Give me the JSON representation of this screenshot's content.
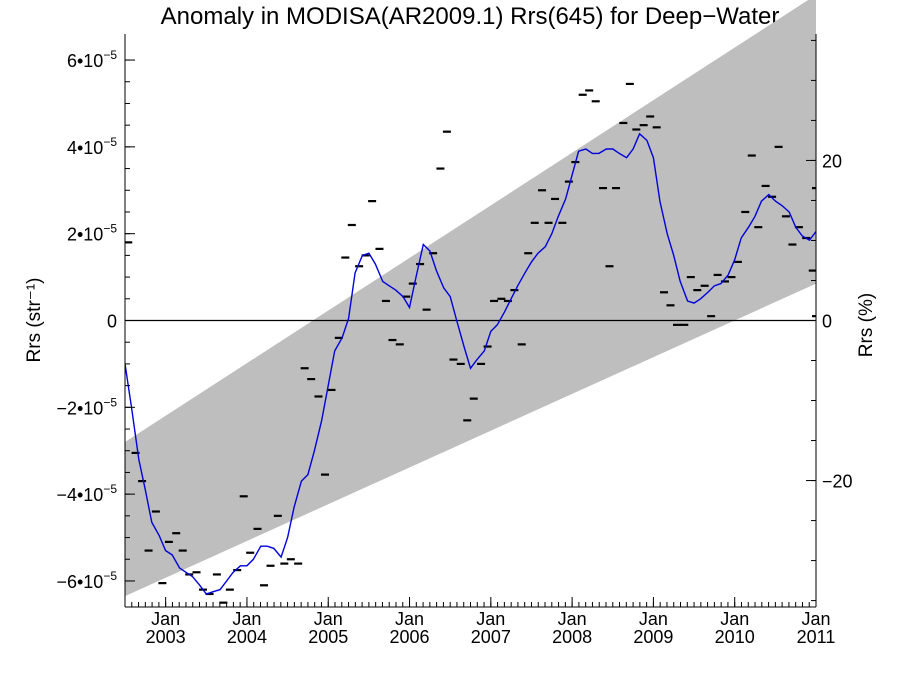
{
  "chart_data": {
    "type": "scatter",
    "title": "Anomaly in MODISA(AR2009.1) Rrs(645) for Deep−Water",
    "ylabel_left": "Rrs (str⁻¹)",
    "ylabel_right": "Rrs (%)",
    "xlabel": "",
    "x_unit": "decimal year",
    "xlim": [
      2002.5,
      2011.0
    ],
    "ylim": [
      -6.6e-05,
      6.6e-05
    ],
    "ylim_right_percent": [
      -35.8,
      35.8
    ],
    "grid": false,
    "x_ticks": [
      {
        "x": 2003.0,
        "month": "Jan",
        "year": "2003"
      },
      {
        "x": 2004.0,
        "month": "Jan",
        "year": "2004"
      },
      {
        "x": 2005.0,
        "month": "Jan",
        "year": "2005"
      },
      {
        "x": 2006.0,
        "month": "Jan",
        "year": "2006"
      },
      {
        "x": 2007.0,
        "month": "Jan",
        "year": "2007"
      },
      {
        "x": 2008.0,
        "month": "Jan",
        "year": "2008"
      },
      {
        "x": 2009.0,
        "month": "Jan",
        "year": "2009"
      },
      {
        "x": 2010.0,
        "month": "Jan",
        "year": "2010"
      },
      {
        "x": 2011.0,
        "month": "Jan",
        "year": "2011"
      }
    ],
    "y_ticks_left": [
      {
        "v": 6e-05,
        "mant": "6•10",
        "exp": "−5"
      },
      {
        "v": 4e-05,
        "mant": "4•10",
        "exp": "−5"
      },
      {
        "v": 2e-05,
        "mant": "2•10",
        "exp": "−5"
      },
      {
        "v": 0,
        "mant": "0",
        "exp": ""
      },
      {
        "v": -2e-05,
        "mant": "−2•10",
        "exp": "−5"
      },
      {
        "v": -4e-05,
        "mant": "−4•10",
        "exp": "−5"
      },
      {
        "v": -6e-05,
        "mant": "−6•10",
        "exp": "−5"
      }
    ],
    "y_ticks_right": [
      {
        "v": 20,
        "label": "20"
      },
      {
        "v": 0,
        "label": "0"
      },
      {
        "v": -20,
        "label": "−20"
      }
    ],
    "band": {
      "color": "#bebebe",
      "upper": [
        [
          2002.5,
          -2.8e-05
        ],
        [
          2011.0,
          7.5e-05
        ]
      ],
      "lower": [
        [
          2002.5,
          -6.35e-05
        ],
        [
          2011.0,
          8.5e-06
        ]
      ]
    },
    "zero_line": 0,
    "series": [
      {
        "kind": "monthly_anomaly_markers",
        "color": "#000000",
        "points": [
          [
            2002.54,
            1.8e-05
          ],
          [
            2002.63,
            -3.05e-05
          ],
          [
            2002.71,
            -3.7e-05
          ],
          [
            2002.79,
            -5.3e-05
          ],
          [
            2002.88,
            -4.4e-05
          ],
          [
            2002.96,
            -6.05e-05
          ],
          [
            2003.04,
            -5.1e-05
          ],
          [
            2003.13,
            -4.9e-05
          ],
          [
            2003.21,
            -5.3e-05
          ],
          [
            2003.29,
            -5.85e-05
          ],
          [
            2003.38,
            -5.8e-05
          ],
          [
            2003.46,
            -6.2e-05
          ],
          [
            2003.54,
            -6.3e-05
          ],
          [
            2003.63,
            -5.85e-05
          ],
          [
            2003.71,
            -6.5e-05
          ],
          [
            2003.79,
            -6.2e-05
          ],
          [
            2003.88,
            -5.75e-05
          ],
          [
            2003.96,
            -4.05e-05
          ],
          [
            2004.04,
            -5.35e-05
          ],
          [
            2004.13,
            -4.8e-05
          ],
          [
            2004.21,
            -6.1e-05
          ],
          [
            2004.29,
            -5.65e-05
          ],
          [
            2004.38,
            -4.5e-05
          ],
          [
            2004.46,
            -5.6e-05
          ],
          [
            2004.54,
            -5.5e-05
          ],
          [
            2004.63,
            -5.6e-05
          ],
          [
            2004.71,
            -1.1e-05
          ],
          [
            2004.79,
            -1.35e-05
          ],
          [
            2004.88,
            -1.75e-05
          ],
          [
            2004.96,
            -3.55e-05
          ],
          [
            2005.04,
            -1.6e-05
          ],
          [
            2005.13,
            -4e-06
          ],
          [
            2005.21,
            1.45e-05
          ],
          [
            2005.29,
            2.2e-05
          ],
          [
            2005.38,
            1.25e-05
          ],
          [
            2005.46,
            1.5e-05
          ],
          [
            2005.54,
            2.75e-05
          ],
          [
            2005.63,
            1.65e-05
          ],
          [
            2005.71,
            4.5e-06
          ],
          [
            2005.79,
            -4.5e-06
          ],
          [
            2005.88,
            -5.5e-06
          ],
          [
            2005.96,
            5.5e-06
          ],
          [
            2006.04,
            8.5e-06
          ],
          [
            2006.13,
            1.3e-05
          ],
          [
            2006.21,
            2.5e-06
          ],
          [
            2006.29,
            1.55e-05
          ],
          [
            2006.38,
            3.5e-05
          ],
          [
            2006.46,
            4.35e-05
          ],
          [
            2006.54,
            -9e-06
          ],
          [
            2006.63,
            -1e-05
          ],
          [
            2006.71,
            -2.3e-05
          ],
          [
            2006.79,
            -1.8e-05
          ],
          [
            2006.88,
            -1e-05
          ],
          [
            2006.96,
            -6e-06
          ],
          [
            2007.04,
            4.5e-06
          ],
          [
            2007.13,
            5e-06
          ],
          [
            2007.21,
            4.5e-06
          ],
          [
            2007.29,
            7e-06
          ],
          [
            2007.38,
            -5.5e-06
          ],
          [
            2007.46,
            1.55e-05
          ],
          [
            2007.54,
            2.25e-05
          ],
          [
            2007.63,
            3e-05
          ],
          [
            2007.71,
            2.25e-05
          ],
          [
            2007.79,
            2.8e-05
          ],
          [
            2007.88,
            2.25e-05
          ],
          [
            2007.96,
            3.2e-05
          ],
          [
            2008.04,
            3.65e-05
          ],
          [
            2008.13,
            5.2e-05
          ],
          [
            2008.21,
            5.3e-05
          ],
          [
            2008.29,
            5.05e-05
          ],
          [
            2008.38,
            3.05e-05
          ],
          [
            2008.46,
            1.25e-05
          ],
          [
            2008.54,
            3.05e-05
          ],
          [
            2008.63,
            4.55e-05
          ],
          [
            2008.71,
            5.45e-05
          ],
          [
            2008.79,
            4.4e-05
          ],
          [
            2008.88,
            4.5e-05
          ],
          [
            2008.96,
            4.7e-05
          ],
          [
            2009.04,
            4.45e-05
          ],
          [
            2009.13,
            6.5e-06
          ],
          [
            2009.21,
            3.5e-06
          ],
          [
            2009.29,
            -1e-06
          ],
          [
            2009.38,
            -1e-06
          ],
          [
            2009.46,
            1e-05
          ],
          [
            2009.54,
            7e-06
          ],
          [
            2009.63,
            8e-06
          ],
          [
            2009.71,
            1e-06
          ],
          [
            2009.79,
            1.05e-05
          ],
          [
            2009.88,
            9e-06
          ],
          [
            2009.96,
            1e-05
          ],
          [
            2010.04,
            1.35e-05
          ],
          [
            2010.13,
            2.5e-05
          ],
          [
            2010.21,
            3.8e-05
          ],
          [
            2010.29,
            2.15e-05
          ],
          [
            2010.38,
            3.1e-05
          ],
          [
            2010.46,
            2.85e-05
          ],
          [
            2010.54,
            4e-05
          ],
          [
            2010.63,
            2.4e-05
          ],
          [
            2010.71,
            1.75e-05
          ],
          [
            2010.79,
            2.15e-05
          ],
          [
            2010.88,
            1.9e-05
          ],
          [
            2010.96,
            1.15e-05
          ],
          [
            2011.0,
            1e-06
          ],
          [
            2011.0,
            3.05e-05
          ]
        ]
      },
      {
        "kind": "running_mean",
        "color": "#0000dd",
        "points": [
          [
            2002.5,
            -1e-05
          ],
          [
            2002.58,
            -2e-05
          ],
          [
            2002.67,
            -3.2e-05
          ],
          [
            2002.75,
            -3.9e-05
          ],
          [
            2002.83,
            -4.65e-05
          ],
          [
            2002.92,
            -4.95e-05
          ],
          [
            2003.0,
            -5.3e-05
          ],
          [
            2003.08,
            -5.4e-05
          ],
          [
            2003.17,
            -5.7e-05
          ],
          [
            2003.25,
            -5.8e-05
          ],
          [
            2003.33,
            -5.9e-05
          ],
          [
            2003.42,
            -6.1e-05
          ],
          [
            2003.5,
            -6.3e-05
          ],
          [
            2003.58,
            -6.25e-05
          ],
          [
            2003.67,
            -6.2e-05
          ],
          [
            2003.75,
            -6e-05
          ],
          [
            2003.83,
            -5.8e-05
          ],
          [
            2003.92,
            -5.65e-05
          ],
          [
            2004.0,
            -5.65e-05
          ],
          [
            2004.08,
            -5.5e-05
          ],
          [
            2004.17,
            -5.2e-05
          ],
          [
            2004.25,
            -5.2e-05
          ],
          [
            2004.33,
            -5.25e-05
          ],
          [
            2004.42,
            -5.45e-05
          ],
          [
            2004.5,
            -5e-05
          ],
          [
            2004.58,
            -4.3e-05
          ],
          [
            2004.67,
            -3.7e-05
          ],
          [
            2004.75,
            -3.55e-05
          ],
          [
            2004.83,
            -3e-05
          ],
          [
            2004.92,
            -2.3e-05
          ],
          [
            2005.0,
            -1.5e-05
          ],
          [
            2005.08,
            -7e-06
          ],
          [
            2005.17,
            -4e-06
          ],
          [
            2005.25,
            5e-07
          ],
          [
            2005.33,
            1.1e-05
          ],
          [
            2005.42,
            1.5e-05
          ],
          [
            2005.5,
            1.55e-05
          ],
          [
            2005.58,
            1.3e-05
          ],
          [
            2005.67,
            9e-06
          ],
          [
            2005.75,
            8e-06
          ],
          [
            2005.83,
            7e-06
          ],
          [
            2005.92,
            5.5e-06
          ],
          [
            2006.0,
            3e-06
          ],
          [
            2006.08,
            1e-05
          ],
          [
            2006.17,
            1.75e-05
          ],
          [
            2006.25,
            1.6e-05
          ],
          [
            2006.33,
            1.15e-05
          ],
          [
            2006.42,
            7.5e-06
          ],
          [
            2006.5,
            5.5e-06
          ],
          [
            2006.58,
            0.0
          ],
          [
            2006.67,
            -6e-06
          ],
          [
            2006.75,
            -1.1e-05
          ],
          [
            2006.83,
            -9e-06
          ],
          [
            2006.92,
            -7e-06
          ],
          [
            2007.0,
            -2.5e-06
          ],
          [
            2007.08,
            -1e-06
          ],
          [
            2007.17,
            2e-06
          ],
          [
            2007.25,
            5e-06
          ],
          [
            2007.33,
            8e-06
          ],
          [
            2007.42,
            1.1e-05
          ],
          [
            2007.5,
            1.35e-05
          ],
          [
            2007.58,
            1.55e-05
          ],
          [
            2007.67,
            1.7e-05
          ],
          [
            2007.75,
            2e-05
          ],
          [
            2007.83,
            2.4e-05
          ],
          [
            2007.92,
            2.8e-05
          ],
          [
            2008.0,
            3.35e-05
          ],
          [
            2008.08,
            3.9e-05
          ],
          [
            2008.17,
            3.95e-05
          ],
          [
            2008.25,
            3.85e-05
          ],
          [
            2008.33,
            3.85e-05
          ],
          [
            2008.42,
            3.95e-05
          ],
          [
            2008.5,
            3.95e-05
          ],
          [
            2008.58,
            3.85e-05
          ],
          [
            2008.67,
            3.75e-05
          ],
          [
            2008.75,
            3.95e-05
          ],
          [
            2008.83,
            4.3e-05
          ],
          [
            2008.92,
            4.15e-05
          ],
          [
            2009.0,
            3.75e-05
          ],
          [
            2009.08,
            2.75e-05
          ],
          [
            2009.17,
            2e-05
          ],
          [
            2009.25,
            1.5e-05
          ],
          [
            2009.33,
            9e-06
          ],
          [
            2009.42,
            4.5e-06
          ],
          [
            2009.5,
            4e-06
          ],
          [
            2009.58,
            5e-06
          ],
          [
            2009.67,
            6.5e-06
          ],
          [
            2009.75,
            8e-06
          ],
          [
            2009.83,
            8.5e-06
          ],
          [
            2009.92,
            1.05e-05
          ],
          [
            2010.0,
            1.4e-05
          ],
          [
            2010.08,
            1.9e-05
          ],
          [
            2010.17,
            2.15e-05
          ],
          [
            2010.25,
            2.4e-05
          ],
          [
            2010.33,
            2.75e-05
          ],
          [
            2010.42,
            2.9e-05
          ],
          [
            2010.5,
            2.75e-05
          ],
          [
            2010.58,
            2.65e-05
          ],
          [
            2010.67,
            2.5e-05
          ],
          [
            2010.75,
            2.15e-05
          ],
          [
            2010.83,
            1.95e-05
          ],
          [
            2010.92,
            1.85e-05
          ],
          [
            2011.0,
            2.05e-05
          ],
          [
            2011.0,
            2.05e-05
          ]
        ]
      }
    ]
  }
}
